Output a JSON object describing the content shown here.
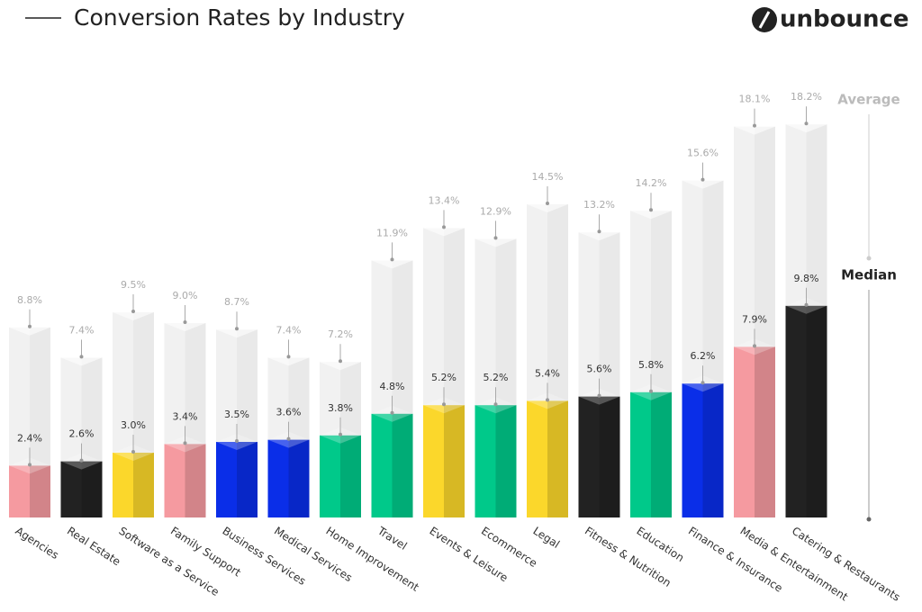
{
  "chart_data": {
    "type": "bar3d",
    "title": "Conversion Rates by Industry",
    "brand": "unbounce",
    "categories": [
      "Agencies",
      "Real Estate",
      "Software as a Service",
      "Family Support",
      "Business Services",
      "Medical Services",
      "Home Improvement",
      "Travel",
      "Events & Leisure",
      "Ecommerce",
      "Legal",
      "Fitness & Nutrition",
      "Education",
      "Finance & Insurance",
      "Media & Entertainment",
      "Catering & Restaurants"
    ],
    "series": [
      {
        "name": "Average",
        "color": "#f1f1f1",
        "values": [
          8.8,
          7.4,
          9.5,
          9.0,
          8.7,
          7.4,
          7.2,
          11.9,
          13.4,
          12.9,
          14.5,
          13.2,
          14.2,
          15.6,
          18.1,
          18.2
        ],
        "value_labels": [
          "8.8%",
          "7.4%",
          "9.5%",
          "9.0%",
          "8.7%",
          "7.4%",
          "7.2%",
          "11.9%",
          "13.4%",
          "12.9%",
          "14.5%",
          "13.2%",
          "14.2%",
          "15.6%",
          "18.1%",
          "18.2%"
        ]
      },
      {
        "name": "Median",
        "colors": [
          "#f59aa0",
          "#222222",
          "#fbd72b",
          "#f59aa0",
          "#0a2ee8",
          "#0a2ee8",
          "#00c98a",
          "#00c98a",
          "#fbd72b",
          "#00c98a",
          "#fbd72b",
          "#222222",
          "#00c98a",
          "#0a2ee8",
          "#f59aa0",
          "#222222"
        ],
        "values": [
          2.4,
          2.6,
          3.0,
          3.4,
          3.5,
          3.6,
          3.8,
          4.8,
          5.2,
          5.2,
          5.4,
          5.6,
          5.8,
          6.2,
          7.9,
          9.8
        ],
        "value_labels": [
          "2.4%",
          "2.6%",
          "3.0%",
          "3.4%",
          "3.5%",
          "3.6%",
          "3.8%",
          "4.8%",
          "5.2%",
          "5.2%",
          "5.4%",
          "5.6%",
          "5.8%",
          "6.2%",
          "7.9%",
          "9.8%"
        ]
      }
    ]
  }
}
